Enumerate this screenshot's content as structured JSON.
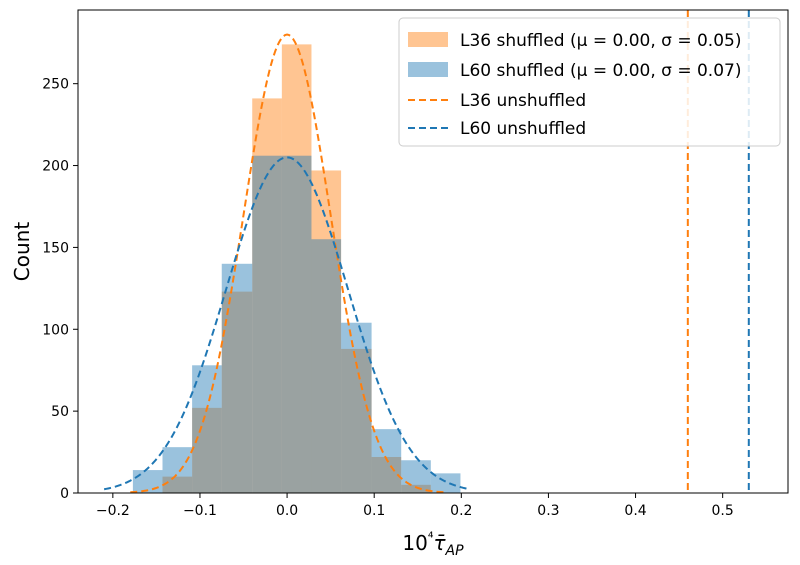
{
  "chart_data": {
    "type": "histogram",
    "xlabel": "10⁴τ̄_AP",
    "ylabel": "Count",
    "xlim": [
      -0.24,
      0.575
    ],
    "ylim": [
      0,
      295
    ],
    "x_ticks": [
      -0.2,
      -0.1,
      0.0,
      0.1,
      0.2,
      0.3,
      0.4,
      0.5
    ],
    "x_tick_labels": [
      "−0.2",
      "−0.1",
      "0.0",
      "0.1",
      "0.2",
      "0.3",
      "0.4",
      "0.5"
    ],
    "y_ticks": [
      0,
      50,
      100,
      150,
      200,
      250
    ],
    "y_tick_labels": [
      "0",
      "50",
      "100",
      "150",
      "200",
      "250"
    ],
    "grid": false,
    "legend_position": "top-right",
    "series": [
      {
        "name": "L36 shuffled (μ = 0.00, σ = 0.05)",
        "kind": "hist",
        "color": "#ff7f0e",
        "bin_edges": [
          -0.143,
          -0.109,
          -0.075,
          -0.04,
          -0.006,
          0.028,
          0.062,
          0.097,
          0.131,
          0.165
        ],
        "counts": [
          10,
          52,
          123,
          241,
          274,
          197,
          88,
          22,
          5
        ]
      },
      {
        "name": "L60 shuffled (μ = 0.00, σ = 0.07)",
        "kind": "hist",
        "color": "#1f77b4",
        "bin_edges": [
          -0.177,
          -0.143,
          -0.109,
          -0.075,
          -0.04,
          -0.006,
          0.028,
          0.062,
          0.097,
          0.131,
          0.165,
          0.199
        ],
        "counts": [
          14,
          28,
          78,
          140,
          206,
          206,
          155,
          104,
          39,
          20,
          12
        ]
      },
      {
        "name": "L36 unshuffled",
        "kind": "vline",
        "color": "#ff7f0e",
        "x": 0.46
      },
      {
        "name": "L60 unshuffled",
        "kind": "vline",
        "color": "#1f77b4",
        "x": 0.53
      }
    ],
    "fit_curves": [
      {
        "series": "L36 shuffled",
        "color": "#ff7f0e",
        "mu": 0.0,
        "sigma": 0.05,
        "peak": 280,
        "x_range": [
          -0.18,
          0.18
        ]
      },
      {
        "series": "L60 shuffled",
        "color": "#1f77b4",
        "mu": 0.0,
        "sigma": 0.07,
        "peak": 205,
        "x_range": [
          -0.21,
          0.21
        ]
      }
    ]
  }
}
